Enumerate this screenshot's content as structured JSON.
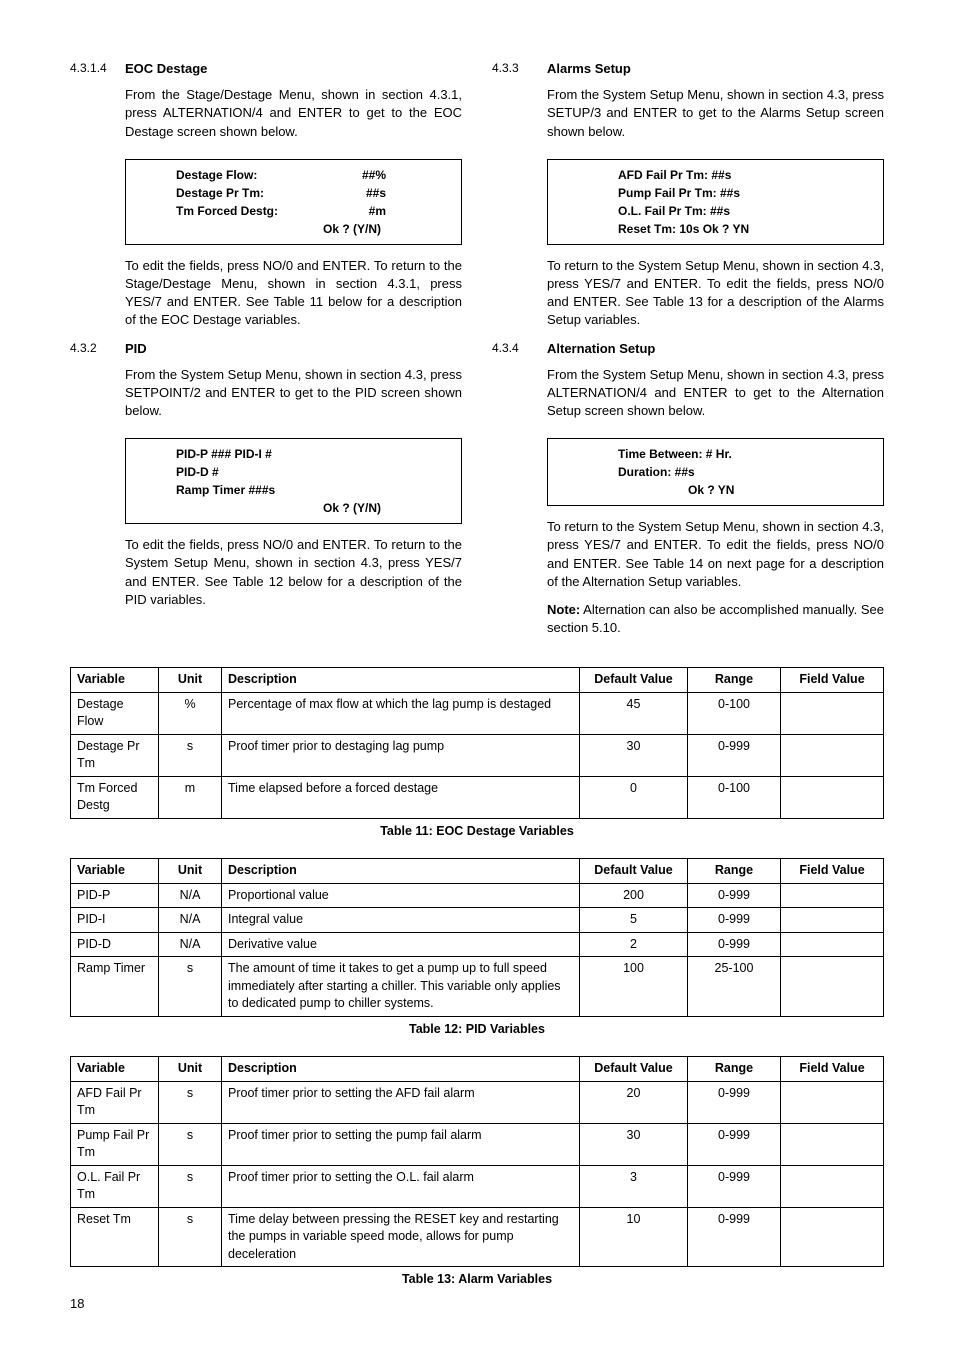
{
  "left": {
    "s1": {
      "num": "4.3.1.4",
      "title": "EOC Destage",
      "p1": "From the Stage/Destage Menu, shown in section 4.3.1, press ALTERNATION/4 and ENTER to get to the EOC Destage screen shown below.",
      "screen": {
        "l1a": "Destage Flow:",
        "l1b": "##%",
        "l2a": "Destage Pr Tm:",
        "l2b": "##s",
        "l3a": "Tm Forced Destg:",
        "l3b": "#m",
        "ok": "Ok ? (Y/N)"
      },
      "p2": "To edit the fields, press NO/0 and ENTER.  To return to the Stage/Destage Menu, shown in section 4.3.1, press YES/7 and ENTER.  See Table 11 below for a description of the EOC Destage variables."
    },
    "s2": {
      "num": "4.3.2",
      "title": "PID",
      "p1": "From the System Setup Menu, shown in section 4.3, press SETPOINT/2 and ENTER to get to the PID screen shown below.",
      "screen": {
        "l1": "PID-P  ###    PID-I    #",
        "l2": "PID-D   #",
        "l3": "Ramp Timer  ###s",
        "ok": "Ok ? (Y/N)"
      },
      "p2": "To edit the fields, press NO/0 and ENTER.  To return to the System Setup Menu, shown in section 4.3, press YES/7 and ENTER.  See Table 12 below for a description of the PID variables."
    }
  },
  "right": {
    "s3": {
      "num": "4.3.3",
      "title": "Alarms Setup",
      "p1": "From the System Setup Menu, shown in section 4.3, press SETUP/3 and ENTER to get to the Alarms Setup screen shown below.",
      "screen": {
        "l1": "AFD Fail Pr Tm: ##s",
        "l2": "Pump Fail Pr Tm:  ##s",
        "l3": "O.L. Fail Pr Tm:  ##s",
        "l4": "Reset Tm: 10s Ok ? YN"
      },
      "p2": "To return to the System Setup Menu, shown in sec­tion 4.3, press YES/7 and ENTER.  To edit the fields, press NO/0 and ENTER.  See Table 13 for a descrip­tion of the Alarms Setup variables."
    },
    "s4": {
      "num": "4.3.4",
      "title": "Alternation Setup",
      "p1": "From the System Setup Menu, shown in section 4.3, press ALTERNATION/4 and ENTER to get to the Alternation Setup screen shown below.",
      "screen": {
        "l1": "Time Between:  # Hr.",
        "l2": "Duration: ##s",
        "ok": "Ok ? YN"
      },
      "p2": "To return to the System Setup Menu, shown in sec­tion 4.3, press YES/7 and ENTER.  To edit the fields, press NO/0 and ENTER.  See Table 14 on next page for a description of the Alternation Setup variables.",
      "note_label": "Note:",
      "note": " Alternation can also be accomplished manually. See section 5.10."
    }
  },
  "headers": {
    "var": "Variable",
    "unit": "Unit",
    "desc": "Description",
    "def": "Default Value",
    "range": "Range",
    "field": "Field Value"
  },
  "table11": {
    "caption": "Table 11: EOC Destage Variables",
    "rows": [
      {
        "var": "Destage Flow",
        "unit": "%",
        "desc": "Percentage of max flow at which the lag pump is destaged",
        "def": "45",
        "range": "0-100",
        "field": ""
      },
      {
        "var": "Destage Pr Tm",
        "unit": "s",
        "desc": "Proof timer prior to destaging lag pump",
        "def": "30",
        "range": "0-999",
        "field": ""
      },
      {
        "var": "Tm Forced Destg",
        "unit": "m",
        "desc": "Time elapsed before a forced destage",
        "def": "0",
        "range": "0-100",
        "field": ""
      }
    ]
  },
  "table12": {
    "caption": "Table 12: PID Variables",
    "rows": [
      {
        "var": "PID-P",
        "unit": "N/A",
        "desc": "Proportional value",
        "def": "200",
        "range": "0-999",
        "field": ""
      },
      {
        "var": "PID-I",
        "unit": "N/A",
        "desc": "Integral value",
        "def": "5",
        "range": "0-999",
        "field": ""
      },
      {
        "var": "PID-D",
        "unit": "N/A",
        "desc": "Derivative value",
        "def": "2",
        "range": "0-999",
        "field": ""
      },
      {
        "var": "Ramp Timer",
        "unit": "s",
        "desc": "The amount of time it takes to get a pump up to full speed immediately after starting a chiller. This variable only applies to dedicated pump to chiller systems.",
        "def": "100",
        "range": "25-100",
        "field": ""
      }
    ]
  },
  "table13": {
    "caption": "Table 13: Alarm Variables",
    "rows": [
      {
        "var": "AFD Fail Pr Tm",
        "unit": "s",
        "desc": "Proof timer prior to setting the AFD fail alarm",
        "def": "20",
        "range": "0-999",
        "field": ""
      },
      {
        "var": "Pump Fail Pr Tm",
        "unit": "s",
        "desc": "Proof timer prior to setting the pump fail alarm",
        "def": "30",
        "range": "0-999",
        "field": ""
      },
      {
        "var": "O.L. Fail Pr Tm",
        "unit": "s",
        "desc": "Proof timer prior to setting the O.L. fail alarm",
        "def": "3",
        "range": "0-999",
        "field": ""
      },
      {
        "var": "Reset Tm",
        "unit": "s",
        "desc": "Time delay between pressing the RESET key and restarting the pumps in variable speed mode, allows for pump deceleration",
        "def": "10",
        "range": "0-999",
        "field": ""
      }
    ]
  },
  "page": "18"
}
